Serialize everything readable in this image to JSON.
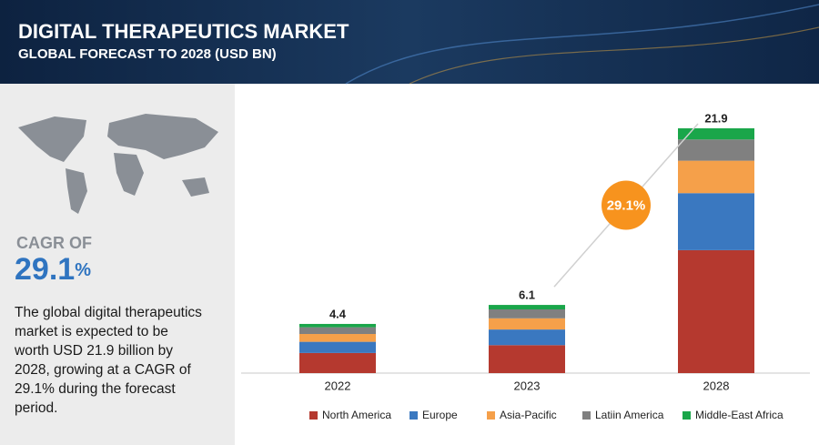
{
  "header": {
    "title": "DIGITAL THERAPEUTICS MARKET",
    "subtitle": "GLOBAL FORECAST TO 2028 (USD BN)"
  },
  "sidebar": {
    "cagr_label": "CAGR OF",
    "cagr_number": "29.1",
    "cagr_unit": "%",
    "description_lines": [
      "The global digital therapeutics",
      "market is expected to be",
      "worth USD 21.9 billion by",
      "2028, growing at a CAGR of",
      "29.1% during the forecast",
      "period."
    ]
  },
  "chart_data": {
    "type": "stacked_bar",
    "categories": [
      "2022",
      "2023",
      "2028"
    ],
    "totals": [
      4.4,
      6.1,
      21.9
    ],
    "annotation": "29.1%",
    "series": [
      {
        "name": "North America",
        "color": "#b5392f",
        "values": [
          1.8,
          2.5,
          11.0
        ]
      },
      {
        "name": "Europe",
        "color": "#3a78c0",
        "values": [
          1.0,
          1.4,
          5.1
        ]
      },
      {
        "name": "Asia-Pacific",
        "color": "#f5a04a",
        "values": [
          0.7,
          1.0,
          2.9
        ]
      },
      {
        "name": "Latiin America",
        "color": "#808080",
        "values": [
          0.6,
          0.8,
          1.9
        ]
      },
      {
        "name": "Middle-East Africa",
        "color": "#1aa64a",
        "values": [
          0.3,
          0.4,
          1.0
        ]
      }
    ]
  }
}
